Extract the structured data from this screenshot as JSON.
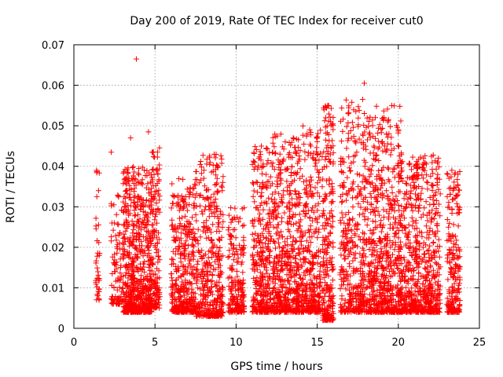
{
  "chart_data": {
    "type": "scatter",
    "title": "Day 200 of 2019, Rate Of TEC Index for receiver cut0",
    "xlabel": "GPS time / hours",
    "ylabel": "ROTI / TECUs",
    "xlim": [
      0,
      25
    ],
    "ylim": [
      0,
      0.07
    ],
    "xticks": [
      0,
      5,
      10,
      15,
      20,
      25
    ],
    "xtick_labels": [
      "0",
      "5",
      "10",
      "15",
      "20",
      "25"
    ],
    "yticks": [
      0,
      0.01,
      0.02,
      0.03,
      0.04,
      0.05,
      0.06,
      0.07
    ],
    "ytick_labels": [
      "0",
      "0.01",
      "0.02",
      "0.03",
      "0.04",
      "0.05",
      "0.06",
      "0.07"
    ],
    "grid": true,
    "marker": "+",
    "color": "#ff0000",
    "series": [
      {
        "name": "ROTI",
        "clusters": [
          {
            "x_range": [
              1.35,
              1.6
            ],
            "y_range": [
              0.007,
              0.039
            ],
            "count": 40
          },
          {
            "x_range": [
              2.3,
              3.0
            ],
            "y_range": [
              0.006,
              0.033
            ],
            "count": 90
          },
          {
            "x_range": [
              3.0,
              4.8
            ],
            "y_range": [
              0.004,
              0.04
            ],
            "count": 700
          },
          {
            "x_range": [
              4.8,
              5.3
            ],
            "y_range": [
              0.005,
              0.045
            ],
            "count": 150
          },
          {
            "x_range": [
              6.0,
              7.5
            ],
            "y_range": [
              0.004,
              0.037
            ],
            "count": 420
          },
          {
            "x_range": [
              7.5,
              9.2
            ],
            "y_range": [
              0.003,
              0.043
            ],
            "count": 420
          },
          {
            "x_range": [
              9.5,
              10.5
            ],
            "y_range": [
              0.004,
              0.03
            ],
            "count": 200
          },
          {
            "x_range": [
              11.0,
              12.2
            ],
            "y_range": [
              0.004,
              0.045
            ],
            "count": 350
          },
          {
            "x_range": [
              12.2,
              13.8
            ],
            "y_range": [
              0.004,
              0.048
            ],
            "count": 500
          },
          {
            "x_range": [
              13.8,
              15.2
            ],
            "y_range": [
              0.004,
              0.05
            ],
            "count": 400
          },
          {
            "x_range": [
              15.3,
              16.0
            ],
            "y_range": [
              0.002,
              0.055
            ],
            "count": 250
          },
          {
            "x_range": [
              16.4,
              18.2
            ],
            "y_range": [
              0.004,
              0.057
            ],
            "count": 450
          },
          {
            "x_range": [
              18.2,
              20.2
            ],
            "y_range": [
              0.004,
              0.055
            ],
            "count": 650
          },
          {
            "x_range": [
              20.2,
              22.6
            ],
            "y_range": [
              0.004,
              0.043
            ],
            "count": 650
          },
          {
            "x_range": [
              23.0,
              23.8
            ],
            "y_range": [
              0.004,
              0.039
            ],
            "count": 220
          }
        ],
        "notable_points": [
          {
            "x": 3.85,
            "y": 0.0665
          },
          {
            "x": 17.9,
            "y": 0.0605
          },
          {
            "x": 15.7,
            "y": 0.055
          },
          {
            "x": 19.6,
            "y": 0.055
          },
          {
            "x": 17.8,
            "y": 0.0565
          },
          {
            "x": 4.6,
            "y": 0.0485
          },
          {
            "x": 2.3,
            "y": 0.0435
          },
          {
            "x": 3.5,
            "y": 0.047
          },
          {
            "x": 1.4,
            "y": 0.039
          },
          {
            "x": 23.3,
            "y": 0.039
          },
          {
            "x": 15.7,
            "y": 0.0025
          },
          {
            "x": 8.3,
            "y": 0.003
          }
        ]
      }
    ]
  }
}
